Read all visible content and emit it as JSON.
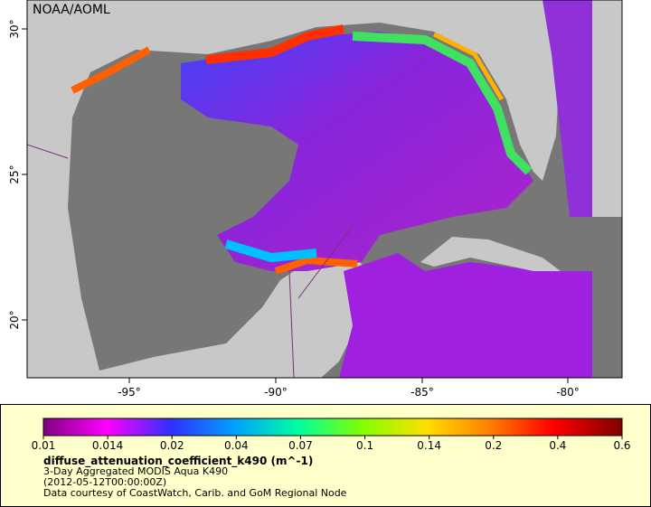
{
  "map": {
    "credit": "NOAA/AOML",
    "lon_labels": [
      "-95°",
      "-90°",
      "-85°",
      "-80°"
    ],
    "lat_labels": [
      "30°",
      "25°",
      "20°"
    ]
  },
  "legend": {
    "tick_labels": [
      "0.01",
      "0.014",
      "0.02",
      "0.04",
      "0.07",
      "0.1",
      "0.14",
      "0.2",
      "0.4",
      "0.6"
    ],
    "variable": "diffuse_attenuation_coefficient_k490 (m^-1)",
    "lines": [
      "3-Day Aggregated MODIS Aqua K490",
      "(2012-05-12T00:00:00Z)",
      "Data courtesy of CoastWatch, Carib. and GoM Regional Node"
    ]
  }
}
